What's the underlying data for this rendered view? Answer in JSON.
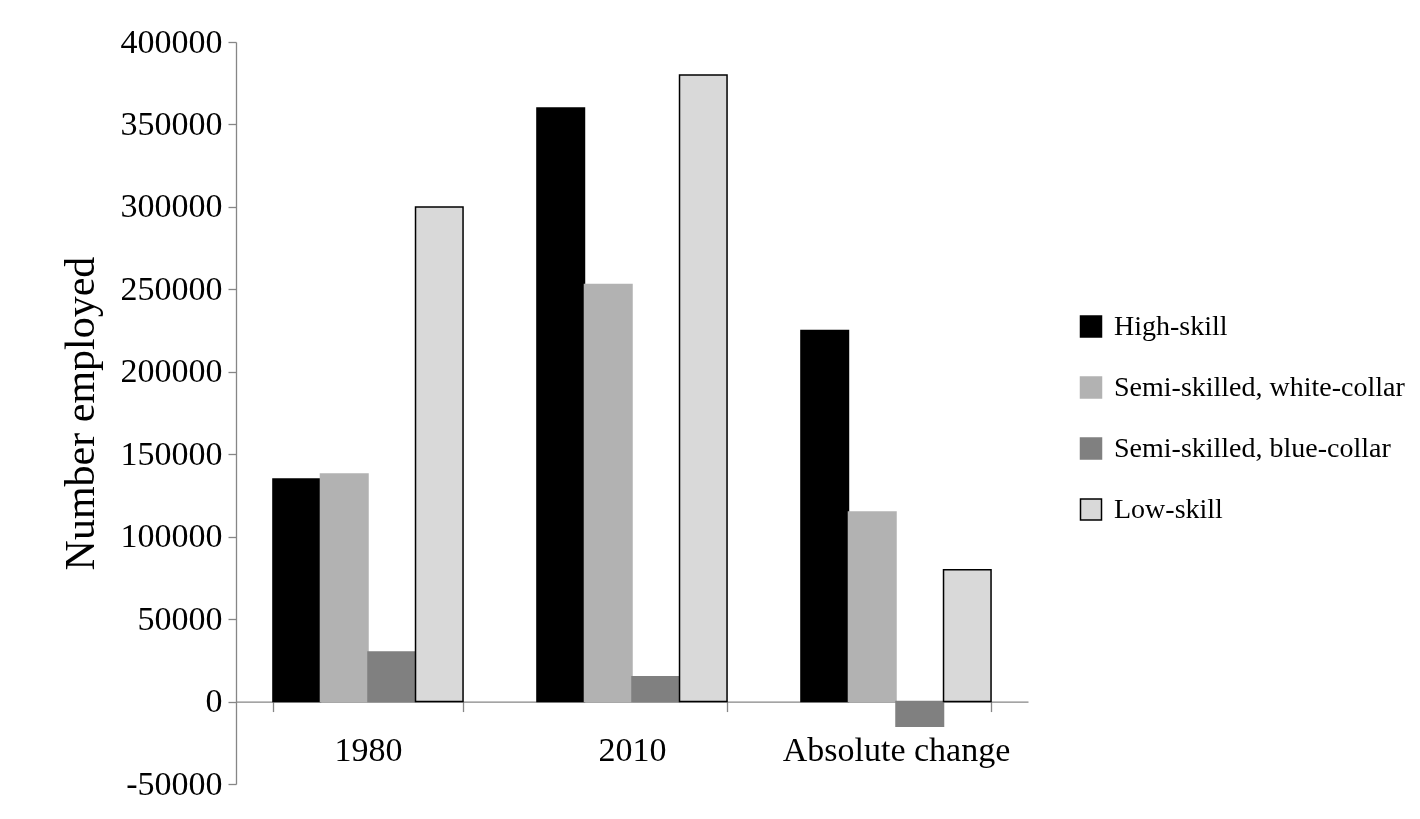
{
  "chart_data": {
    "type": "bar",
    "ylabel": "Number employed",
    "categories": [
      "1980",
      "2010",
      "Absolute change"
    ],
    "series": [
      {
        "name": "High-skill",
        "color": "#000000",
        "values": [
          135000,
          360000,
          225000
        ]
      },
      {
        "name": "Semi-skilled, white-collar",
        "color": "#b2b2b2",
        "values": [
          138000,
          253000,
          115000
        ]
      },
      {
        "name": "Semi-skilled, blue-collar",
        "color": "#808080",
        "values": [
          30000,
          15000,
          -15000
        ]
      },
      {
        "name": "Low-skill",
        "color": "#d9d9d9",
        "values": [
          300000,
          380000,
          80000
        ]
      }
    ],
    "ylim": [
      -50000,
      400000
    ],
    "yticks": [
      -50000,
      0,
      50000,
      100000,
      150000,
      200000,
      250000,
      300000,
      350000,
      400000
    ],
    "legend": "right"
  }
}
